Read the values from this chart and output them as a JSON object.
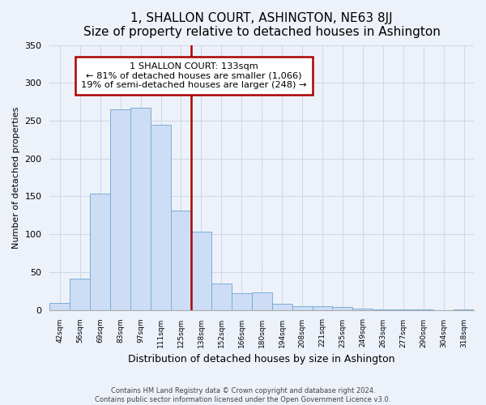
{
  "title": "1, SHALLON COURT, ASHINGTON, NE63 8JJ",
  "subtitle": "Size of property relative to detached houses in Ashington",
  "xlabel": "Distribution of detached houses by size in Ashington",
  "ylabel": "Number of detached properties",
  "bar_labels": [
    "42sqm",
    "56sqm",
    "69sqm",
    "83sqm",
    "97sqm",
    "111sqm",
    "125sqm",
    "138sqm",
    "152sqm",
    "166sqm",
    "180sqm",
    "194sqm",
    "208sqm",
    "221sqm",
    "235sqm",
    "249sqm",
    "263sqm",
    "277sqm",
    "290sqm",
    "304sqm",
    "318sqm"
  ],
  "bar_values": [
    9,
    41,
    154,
    265,
    267,
    245,
    131,
    103,
    35,
    22,
    23,
    8,
    5,
    5,
    4,
    2,
    1,
    1,
    1,
    0,
    1
  ],
  "bar_color": "#ccddf5",
  "bar_edge_color": "#7aadd4",
  "annotation_title": "1 SHALLON COURT: 133sqm",
  "annotation_line1": "← 81% of detached houses are smaller (1,066)",
  "annotation_line2": "19% of semi-detached houses are larger (248) →",
  "annotation_box_color": "#ffffff",
  "annotation_box_edge_color": "#aa0000",
  "vline_color": "#aa0000",
  "ylim": [
    0,
    350
  ],
  "footnote1": "Contains HM Land Registry data © Crown copyright and database right 2024.",
  "footnote2": "Contains public sector information licensed under the Open Government Licence v3.0.",
  "background_color": "#edf2fa",
  "grid_color": "#d0d8e8",
  "title_fontsize": 11,
  "subtitle_fontsize": 9.5
}
